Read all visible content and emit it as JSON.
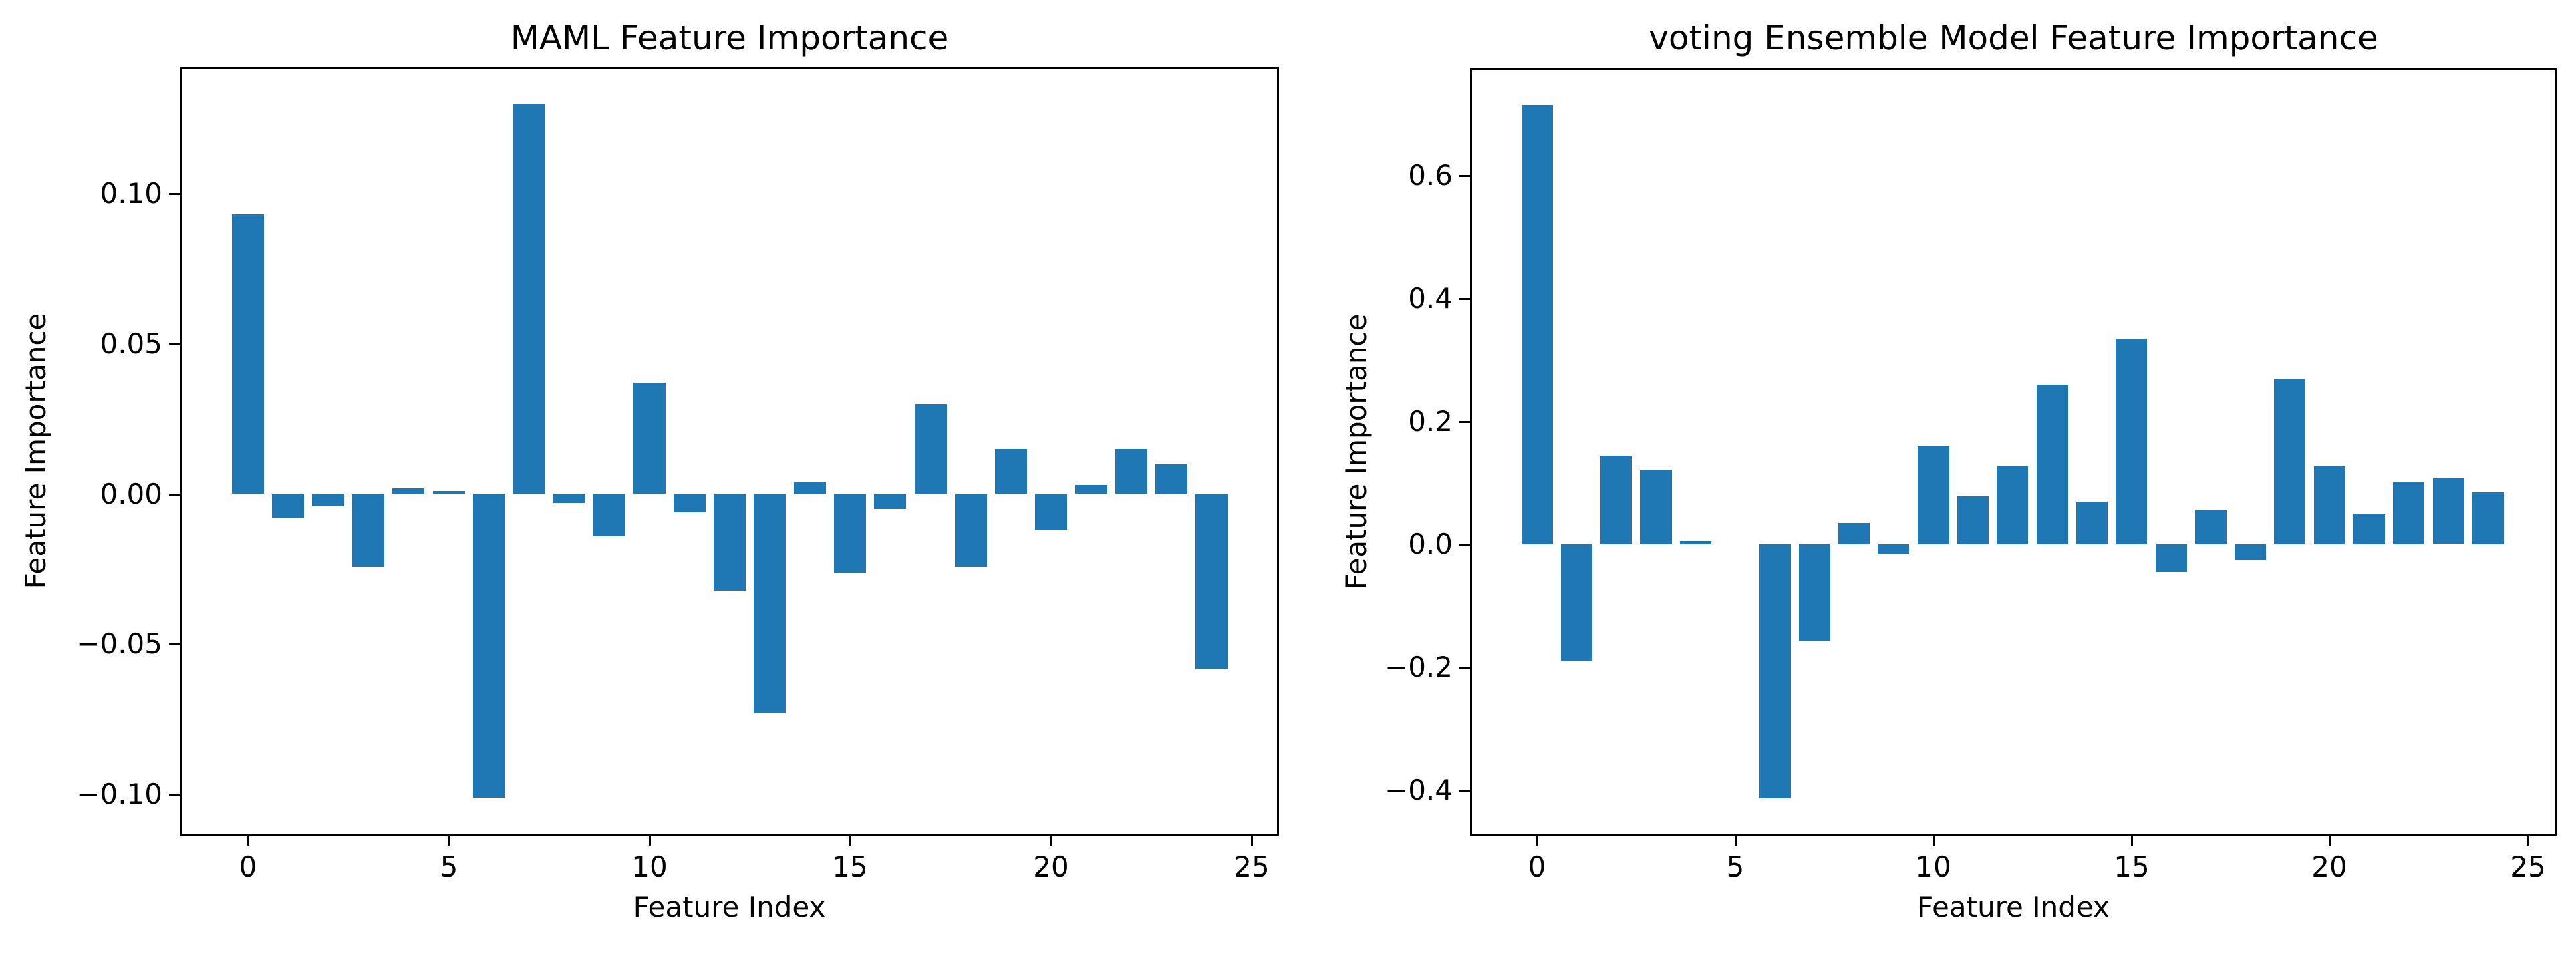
{
  "figure": {
    "background_color": "#ffffff",
    "bar_color": "#1f77b4",
    "text_color": "#000000",
    "spine_color": "#000000"
  },
  "chart_data": [
    {
      "type": "bar",
      "title": "MAML Feature Importance",
      "xlabel": "Feature Index",
      "ylabel": "Feature Importance",
      "categories": [
        0,
        1,
        2,
        3,
        4,
        5,
        6,
        7,
        8,
        9,
        10,
        11,
        12,
        13,
        14,
        15,
        16,
        17,
        18,
        19,
        20,
        21,
        22,
        23,
        24
      ],
      "values": [
        0.093,
        -0.008,
        -0.004,
        -0.024,
        0.002,
        0.001,
        -0.101,
        0.13,
        -0.003,
        -0.014,
        0.037,
        -0.006,
        -0.032,
        -0.073,
        0.004,
        -0.026,
        -0.005,
        0.03,
        -0.024,
        0.015,
        -0.012,
        0.003,
        0.015,
        0.01,
        -0.058
      ],
      "bar_rel_width": 0.8,
      "xlim": [
        -1.65,
        25.63
      ],
      "ylim": [
        -0.1131,
        0.1416
      ],
      "xticks": [
        0,
        5,
        10,
        15,
        20,
        25
      ],
      "xtick_labels": [
        "0",
        "5",
        "10",
        "15",
        "20",
        "25"
      ],
      "yticks": [
        0.1,
        0.05,
        0.0,
        -0.05,
        -0.1
      ],
      "ytick_labels": [
        "0.10",
        "0.05",
        "0.00",
        "−0.05",
        "−0.10"
      ],
      "grid": false,
      "legend": null
    },
    {
      "type": "bar",
      "title": "voting Ensemble Model Feature Importance",
      "xlabel": "Feature Index",
      "ylabel": "Feature Importance",
      "categories": [
        0,
        1,
        2,
        3,
        4,
        5,
        6,
        7,
        8,
        9,
        10,
        11,
        12,
        13,
        14,
        15,
        16,
        17,
        18,
        19,
        20,
        21,
        22,
        23,
        24
      ],
      "values": [
        0.715,
        -0.19,
        0.145,
        0.122,
        0.005,
        0.0,
        -0.413,
        -0.158,
        0.035,
        -0.016,
        0.16,
        0.078,
        0.127,
        0.26,
        0.07,
        0.335,
        -0.045,
        0.055,
        -0.025,
        0.268,
        0.127,
        0.05,
        0.102,
        0.107,
        0.085
      ],
      "bar_rel_width": 0.8,
      "xlim": [
        -1.64,
        25.68
      ],
      "ylim": [
        -0.4707,
        0.7716
      ],
      "xticks": [
        0,
        5,
        10,
        15,
        20,
        25
      ],
      "xtick_labels": [
        "0",
        "5",
        "10",
        "15",
        "20",
        "25"
      ],
      "yticks": [
        0.6,
        0.4,
        0.2,
        0.0,
        -0.2,
        -0.4
      ],
      "ytick_labels": [
        "0.6",
        "0.4",
        "0.2",
        "0.0",
        "−0.2",
        "−0.4"
      ],
      "grid": false,
      "legend": null
    }
  ]
}
